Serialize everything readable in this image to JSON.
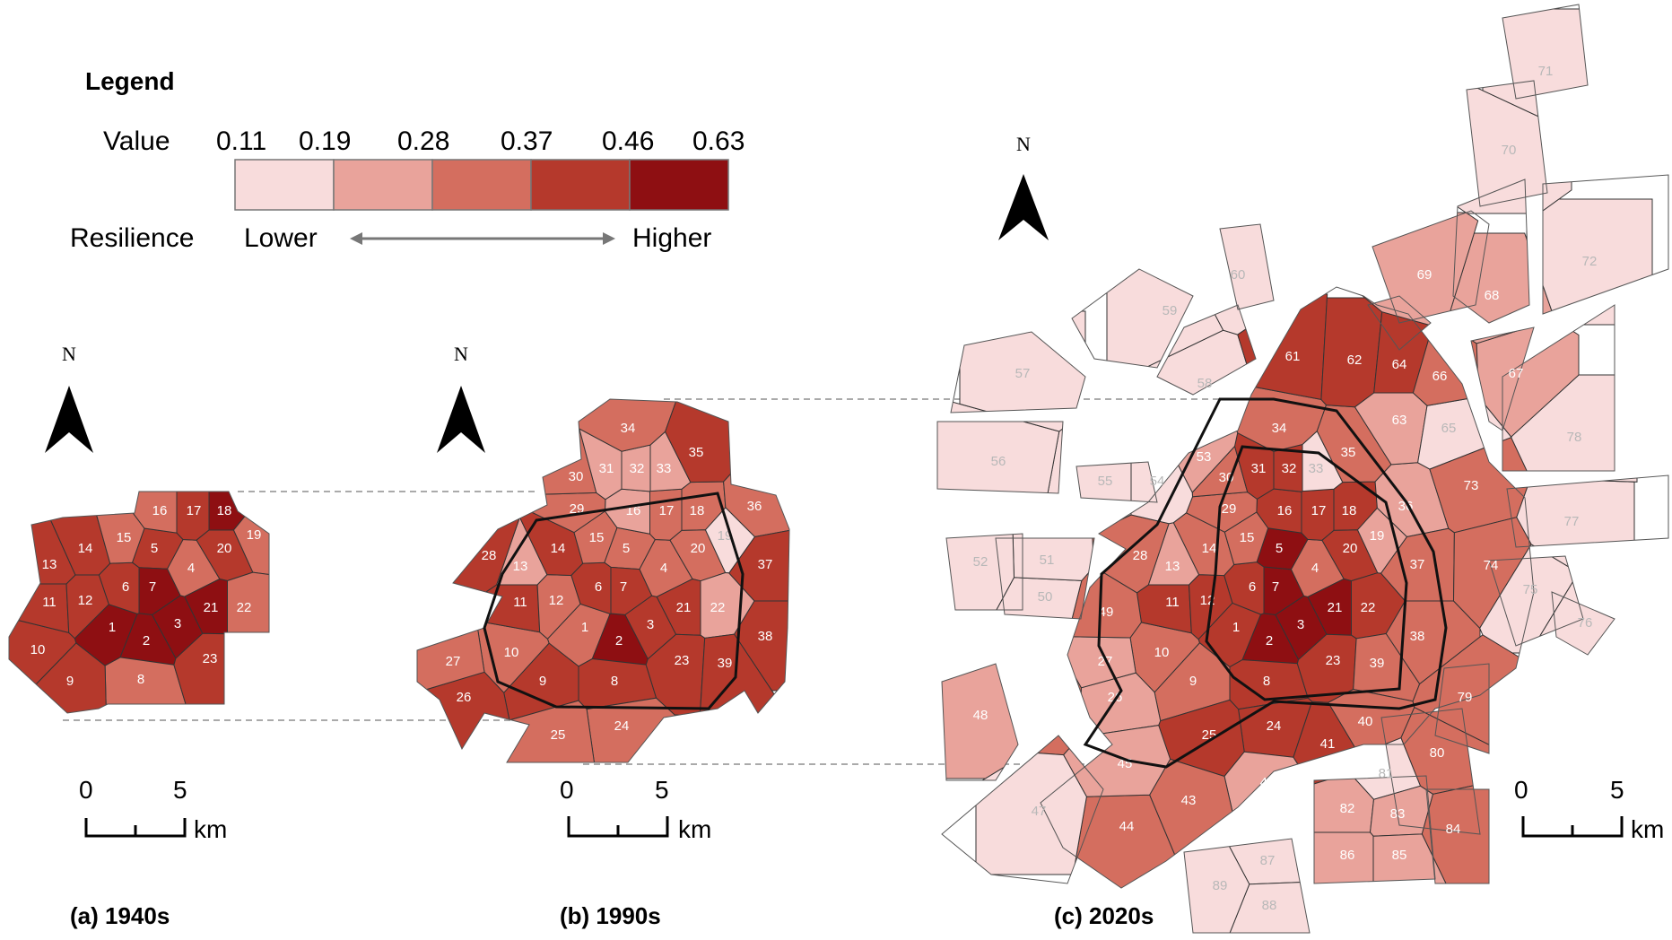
{
  "legend": {
    "title": "Legend",
    "value_label": "Value",
    "breaks": [
      "0.11",
      "0.19",
      "0.28",
      "0.37",
      "0.46",
      "0.63"
    ],
    "classes": [
      "#f8dcdc",
      "#e9a39b",
      "#d46e5f",
      "#b5392c",
      "#8e0f12"
    ],
    "resilience_label": "Resilience",
    "lower_label": "Lower",
    "higher_label": "Higher"
  },
  "north_label": "N",
  "scale": {
    "zero": "0",
    "five": "5",
    "unit": "km"
  },
  "panels": [
    {
      "id": "a",
      "title": "(a) 1940s"
    },
    {
      "id": "b",
      "title": "(b) 1990s"
    },
    {
      "id": "c",
      "title": "(c) 2020s"
    }
  ],
  "zones": {
    "a": [
      [
        "1",
        4
      ],
      [
        "2",
        4
      ],
      [
        "3",
        4
      ],
      [
        "4",
        2
      ],
      [
        "5",
        3
      ],
      [
        "6",
        3
      ],
      [
        "7",
        4
      ],
      [
        "8",
        2
      ],
      [
        "9",
        3
      ],
      [
        "10",
        3
      ],
      [
        "11",
        3
      ],
      [
        "12",
        3
      ],
      [
        "13",
        3
      ],
      [
        "14",
        3
      ],
      [
        "15",
        2
      ],
      [
        "16",
        2
      ],
      [
        "17",
        3
      ],
      [
        "18",
        4
      ],
      [
        "19",
        2
      ],
      [
        "20",
        3
      ],
      [
        "21",
        4
      ],
      [
        "22",
        2
      ],
      [
        "23",
        3
      ]
    ],
    "b": [
      [
        "1",
        2
      ],
      [
        "2",
        4
      ],
      [
        "3",
        3
      ],
      [
        "4",
        2
      ],
      [
        "5",
        2
      ],
      [
        "6",
        3
      ],
      [
        "7",
        3
      ],
      [
        "8",
        3
      ],
      [
        "9",
        3
      ],
      [
        "10",
        2
      ],
      [
        "11",
        3
      ],
      [
        "12",
        2
      ],
      [
        "13",
        1
      ],
      [
        "14",
        3
      ],
      [
        "15",
        2
      ],
      [
        "16",
        1
      ],
      [
        "17",
        2
      ],
      [
        "18",
        2
      ],
      [
        "19",
        0
      ],
      [
        "20",
        2
      ],
      [
        "21",
        3
      ],
      [
        "22",
        1
      ],
      [
        "23",
        3
      ],
      [
        "24",
        2
      ],
      [
        "25",
        2
      ],
      [
        "26",
        3
      ],
      [
        "27",
        2
      ],
      [
        "28",
        3
      ],
      [
        "29",
        2
      ],
      [
        "30",
        2
      ],
      [
        "31",
        1
      ],
      [
        "32",
        1
      ],
      [
        "33",
        1
      ],
      [
        "34",
        2
      ],
      [
        "35",
        3
      ],
      [
        "36",
        2
      ],
      [
        "37",
        3
      ],
      [
        "38",
        3
      ],
      [
        "39",
        3
      ]
    ],
    "c": [
      [
        "1",
        3
      ],
      [
        "2",
        4
      ],
      [
        "3",
        4
      ],
      [
        "4",
        2
      ],
      [
        "5",
        4
      ],
      [
        "6",
        3
      ],
      [
        "7",
        4
      ],
      [
        "8",
        3
      ],
      [
        "9",
        2
      ],
      [
        "10",
        2
      ],
      [
        "11",
        3
      ],
      [
        "12",
        3
      ],
      [
        "13",
        1
      ],
      [
        "14",
        2
      ],
      [
        "15",
        2
      ],
      [
        "16",
        3
      ],
      [
        "17",
        3
      ],
      [
        "18",
        3
      ],
      [
        "19",
        1
      ],
      [
        "20",
        3
      ],
      [
        "21",
        4
      ],
      [
        "22",
        3
      ],
      [
        "23",
        3
      ],
      [
        "24",
        3
      ],
      [
        "25",
        3
      ],
      [
        "26",
        1
      ],
      [
        "27",
        1
      ],
      [
        "28",
        2
      ],
      [
        "29",
        2
      ],
      [
        "30",
        2
      ],
      [
        "31",
        3
      ],
      [
        "32",
        3
      ],
      [
        "33",
        0
      ],
      [
        "34",
        2
      ],
      [
        "35",
        2
      ],
      [
        "36",
        1
      ],
      [
        "37",
        2
      ],
      [
        "38",
        2
      ],
      [
        "39",
        2
      ],
      [
        "40",
        2
      ],
      [
        "41",
        3
      ],
      [
        "42",
        1
      ],
      [
        "43",
        2
      ],
      [
        "44",
        2
      ],
      [
        "45",
        1
      ],
      [
        "46",
        2
      ],
      [
        "47",
        0
      ],
      [
        "48",
        1
      ],
      [
        "49",
        2
      ],
      [
        "50",
        0
      ],
      [
        "51",
        0
      ],
      [
        "52",
        0
      ],
      [
        "53",
        1
      ],
      [
        "54",
        0
      ],
      [
        "55",
        0
      ],
      [
        "56",
        0
      ],
      [
        "57",
        0
      ],
      [
        "58",
        0
      ],
      [
        "59",
        0
      ],
      [
        "60",
        0
      ],
      [
        "61",
        3
      ],
      [
        "62",
        3
      ],
      [
        "63",
        1
      ],
      [
        "64",
        3
      ],
      [
        "65",
        0
      ],
      [
        "66",
        2
      ],
      [
        "67",
        1
      ],
      [
        "68",
        1
      ],
      [
        "69",
        1
      ],
      [
        "70",
        0
      ],
      [
        "71",
        0
      ],
      [
        "72",
        0
      ],
      [
        "73",
        2
      ],
      [
        "74",
        2
      ],
      [
        "75",
        0
      ],
      [
        "76",
        0
      ],
      [
        "77",
        0
      ],
      [
        "78",
        0
      ],
      [
        "79",
        2
      ],
      [
        "80",
        2
      ],
      [
        "81",
        0
      ],
      [
        "82",
        1
      ],
      [
        "83",
        1
      ],
      [
        "84",
        2
      ],
      [
        "85",
        1
      ],
      [
        "86",
        1
      ],
      [
        "87",
        0
      ],
      [
        "88",
        0
      ],
      [
        "89",
        0
      ]
    ]
  }
}
